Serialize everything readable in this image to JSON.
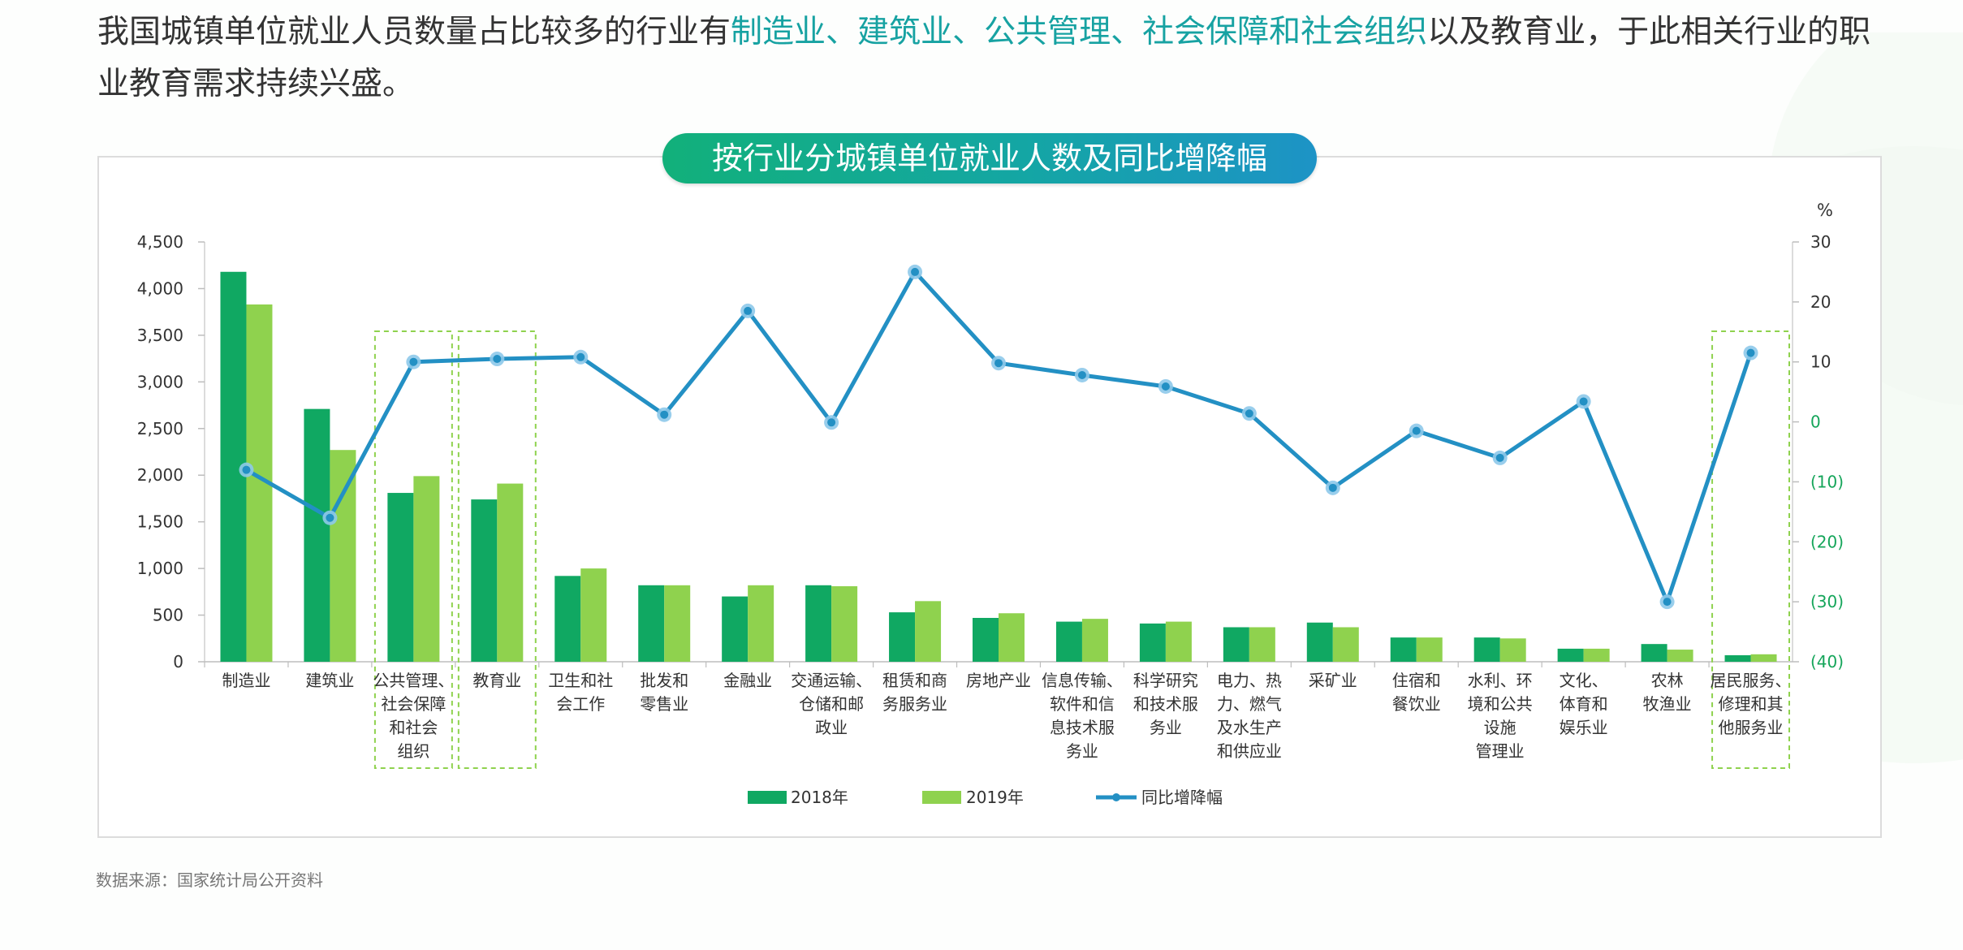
{
  "intro": {
    "before": "我国城镇单位就业人员数量占比较多的行业有",
    "highlight1": "制造业",
    "sep1": "、",
    "highlight2": "建筑业",
    "sep2": "、",
    "highlight3": "公共管理",
    "sep3": "、",
    "highlight4": "社会保障和社会组织",
    "after": "以及教育业，于此相关行业的职业教育需求持续兴盛。"
  },
  "source": "数据来源：国家统计局公开资料",
  "colors": {
    "bar2018": "#10a862",
    "bar2019": "#8fd24e",
    "line": "#2390c4",
    "lineMarker": "#8ec9ea",
    "rightAxis": "#15a55a",
    "highlightBox": "#8fd24e"
  },
  "chart_data": {
    "type": "bar",
    "title": "按行业分城镇单位就业人数及同比增降幅",
    "categories": [
      "制造业",
      "建筑业",
      "公共管理、社会保障和社会组织",
      "教育业",
      "卫生和社会工作",
      "批发和零售业",
      "金融业",
      "交通运输、仓储和邮政业",
      "租赁和商务服务业",
      "房地产业",
      "信息传输、软件和信息技术服务业",
      "科学研究和技术服务业",
      "电力、热力、燃气及水生产和供应业",
      "采矿业",
      "住宿和餐饮业",
      "水利、环境和公共设施管理业",
      "文化、体育和娱乐业",
      "农林牧渔业",
      "居民服务、修理和其他服务业"
    ],
    "category_lines": [
      [
        "制造业"
      ],
      [
        "建筑业"
      ],
      [
        "公共管理、",
        "社会保障",
        "和社会",
        "组织"
      ],
      [
        "教育业"
      ],
      [
        "卫生和社",
        "会工作"
      ],
      [
        "批发和",
        "零售业"
      ],
      [
        "金融业"
      ],
      [
        "交通运输、",
        "仓储和邮",
        "政业"
      ],
      [
        "租赁和商",
        "务服务业"
      ],
      [
        "房地产业"
      ],
      [
        "信息传输、",
        "软件和信",
        "息技术服",
        "务业"
      ],
      [
        "科学研究",
        "和技术服",
        "务业"
      ],
      [
        "电力、热",
        "力、燃气",
        "及水生产",
        "和供应业"
      ],
      [
        "采矿业"
      ],
      [
        "住宿和",
        "餐饮业"
      ],
      [
        "水利、环",
        "境和公共",
        "设施",
        "管理业"
      ],
      [
        "文化、",
        "体育和",
        "娱乐业"
      ],
      [
        "农林",
        "牧渔业"
      ],
      [
        "居民服务、",
        "修理和其",
        "他服务业"
      ]
    ],
    "highlighted": [
      2,
      3,
      18
    ],
    "series": [
      {
        "name": "2018年",
        "kind": "bar",
        "axis": "left",
        "values": [
          4180,
          2710,
          1810,
          1740,
          920,
          820,
          700,
          820,
          530,
          470,
          430,
          410,
          370,
          420,
          260,
          260,
          140,
          190,
          70
        ]
      },
      {
        "name": "2019年",
        "kind": "bar",
        "axis": "left",
        "values": [
          3830,
          2270,
          1990,
          1910,
          1000,
          820,
          820,
          810,
          650,
          520,
          460,
          430,
          370,
          370,
          260,
          250,
          140,
          130,
          80
        ]
      },
      {
        "name": "同比增降幅",
        "kind": "line",
        "axis": "right",
        "values": [
          -8,
          -16,
          10,
          10.5,
          10.8,
          1.2,
          18.5,
          -0.1,
          25,
          9.8,
          7.8,
          5.9,
          1.4,
          -11,
          -1.5,
          -6,
          3.4,
          -30,
          11.5
        ]
      }
    ],
    "y_left": {
      "min": 0,
      "max": 4500,
      "ticks": [
        0,
        500,
        1000,
        1500,
        2000,
        2500,
        3000,
        3500,
        4000,
        4500
      ],
      "tick_labels": [
        "0",
        "500",
        "1,000",
        "1,500",
        "2,000",
        "2,500",
        "3,000",
        "3,500",
        "4,000",
        "4,500"
      ]
    },
    "y_right": {
      "min": -40,
      "max": 30,
      "unit": "%",
      "ticks": [
        30,
        20,
        10,
        0,
        -10,
        -20,
        -30,
        -40
      ],
      "tick_labels": [
        "30",
        "20",
        "10",
        "0",
        "(10)",
        "(20)",
        "(30)",
        "(40)"
      ]
    },
    "legend_position": "bottom-center",
    "grid": false
  }
}
